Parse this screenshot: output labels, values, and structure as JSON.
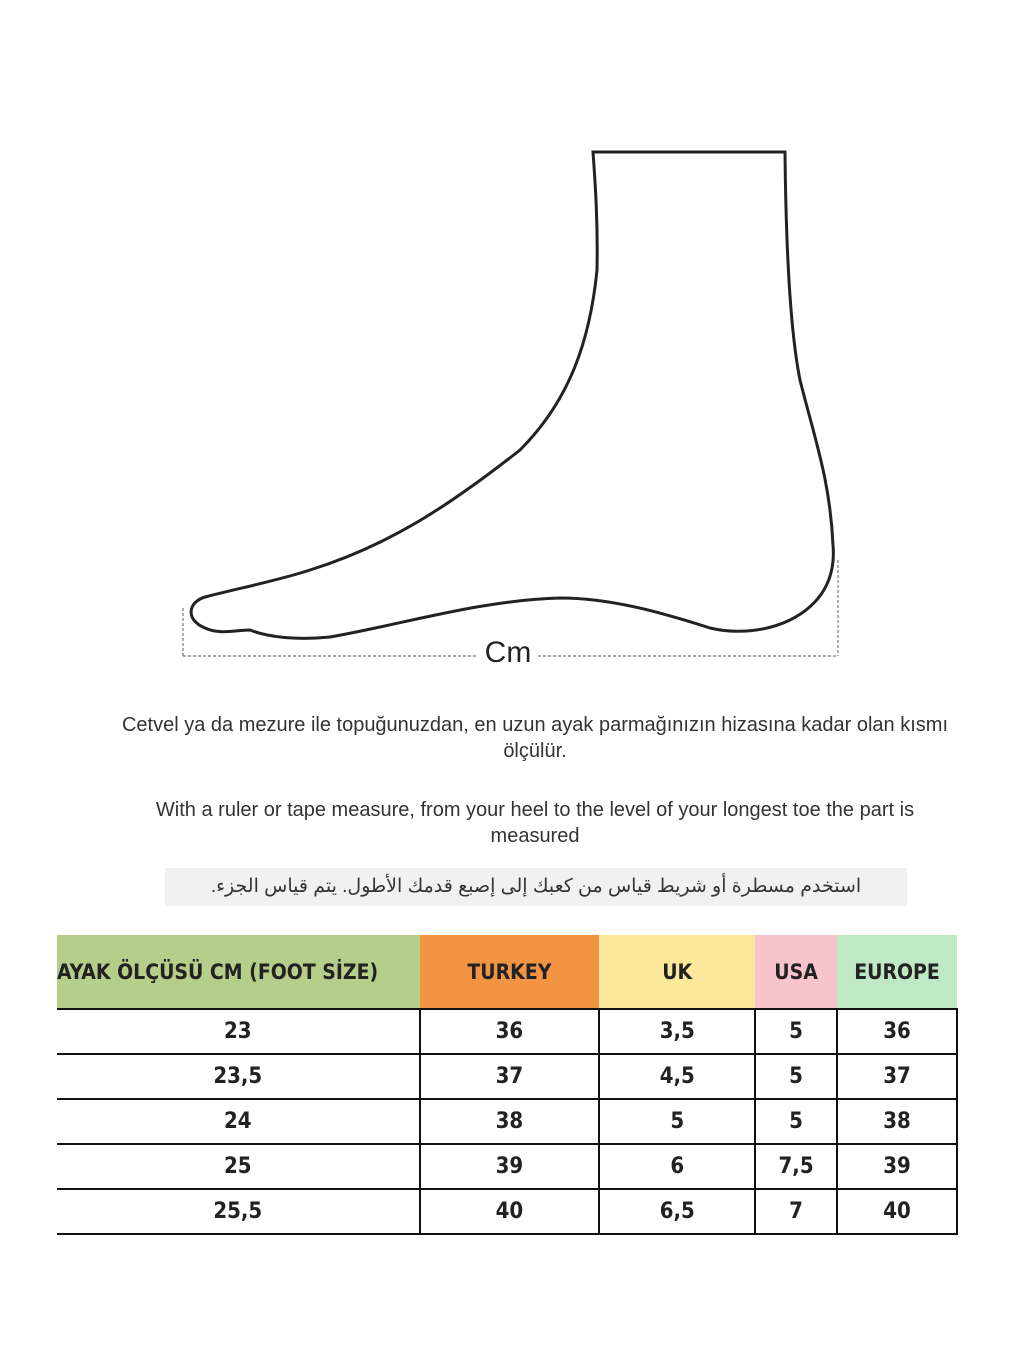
{
  "diagram": {
    "measure_label": "Cm"
  },
  "instructions": {
    "turkish": "Cetvel ya da mezure ile topuğunuzdan, en uzun ayak parmağınızın hizasına kadar olan kısmı ölçülür.",
    "english": "With a ruler or tape measure, from your heel to the level of your longest toe the part is measured",
    "arabic": "استخدم مسطرة أو شريط قياس من كعبك إلى إصبع قدمك الأطول.  يتم قياس الجزء."
  },
  "table": {
    "headers": [
      {
        "label": "AYAK ÖLÇÜSÜ CM (FOOT SİZE)",
        "color": "#b5cf8a"
      },
      {
        "label": "TURKEY",
        "color": "#f39443"
      },
      {
        "label": "UK",
        "color": "#fbe89a"
      },
      {
        "label": "USA",
        "color": "#f8c4cc"
      },
      {
        "label": "EUROPE",
        "color": "#bfe8c4"
      }
    ],
    "rows": [
      [
        "23",
        "36",
        "3,5",
        "5",
        "36"
      ],
      [
        "23,5",
        "37",
        "4,5",
        "5",
        "37"
      ],
      [
        "24",
        "38",
        "5",
        "5",
        "38"
      ],
      [
        "25",
        "39",
        "6",
        "7,5",
        "39"
      ],
      [
        "25,5",
        "40",
        "6,5",
        "7",
        "40"
      ]
    ]
  }
}
